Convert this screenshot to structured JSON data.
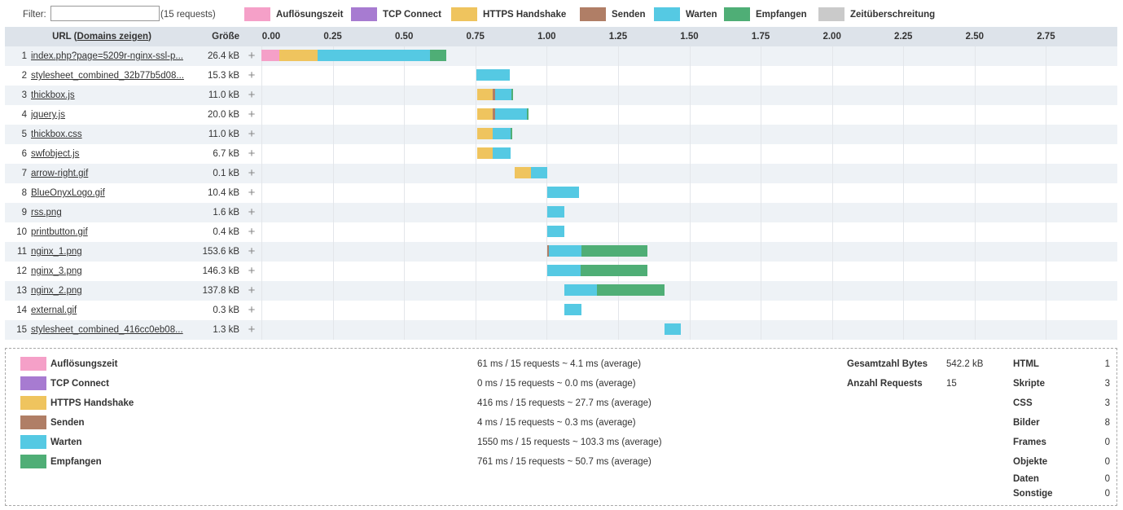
{
  "filter": {
    "label": "Filter:",
    "value": "",
    "count_text": "(15 requests)"
  },
  "legend": [
    {
      "label": "Auflösungszeit",
      "color": "#f5a0c8"
    },
    {
      "label": "TCP Connect",
      "color": "#a77bd1"
    },
    {
      "label": "HTTPS Handshake",
      "color": "#efc45e"
    },
    {
      "label": "Senden",
      "color": "#b07e66"
    },
    {
      "label": "Warten",
      "color": "#55c9e3"
    },
    {
      "label": "Empfangen",
      "color": "#4fae76"
    },
    {
      "label": "Zeitüberschreitung",
      "color": "#cacaca"
    }
  ],
  "table": {
    "url_header_prefix": "URL (",
    "url_header_link": "Domains zeigen",
    "url_header_suffix": ")",
    "size_header": "Größe",
    "axis": {
      "max": 3.0,
      "ticks": [
        "0.00",
        "0.25",
        "0.50",
        "0.75",
        "1.00",
        "1.25",
        "1.50",
        "1.75",
        "2.00",
        "2.25",
        "2.50",
        "2.75"
      ]
    },
    "rows": [
      {
        "idx": "1",
        "url": "index.php?page=5209r-nginx-ssl-p...",
        "size": "26.4 kB",
        "seg": [
          [
            "#f5a0c8",
            0.0,
            0.062
          ],
          [
            "#efc45e",
            0.062,
            0.198
          ],
          [
            "#55c9e3",
            0.198,
            0.59
          ],
          [
            "#4fae76",
            0.59,
            0.647
          ]
        ]
      },
      {
        "idx": "2",
        "url": "stylesheet_combined_32b77b5d08...",
        "size": "15.3 kB",
        "seg": [
          [
            "#55c9e3",
            0.753,
            0.87
          ]
        ]
      },
      {
        "idx": "3",
        "url": "thickbox.js",
        "size": "11.0 kB",
        "seg": [
          [
            "#efc45e",
            0.756,
            0.812
          ],
          [
            "#b07e66",
            0.812,
            0.818
          ],
          [
            "#55c9e3",
            0.818,
            0.876
          ],
          [
            "#4fae76",
            0.876,
            0.882
          ]
        ]
      },
      {
        "idx": "4",
        "url": "jquery.js",
        "size": "20.0 kB",
        "seg": [
          [
            "#efc45e",
            0.756,
            0.812
          ],
          [
            "#b07e66",
            0.812,
            0.818
          ],
          [
            "#55c9e3",
            0.818,
            0.93
          ],
          [
            "#4fae76",
            0.93,
            0.936
          ]
        ]
      },
      {
        "idx": "5",
        "url": "thickbox.css",
        "size": "11.0 kB",
        "seg": [
          [
            "#efc45e",
            0.756,
            0.812
          ],
          [
            "#55c9e3",
            0.812,
            0.874
          ],
          [
            "#4fae76",
            0.874,
            0.88
          ]
        ]
      },
      {
        "idx": "6",
        "url": "swfobject.js",
        "size": "6.7 kB",
        "seg": [
          [
            "#efc45e",
            0.756,
            0.812
          ],
          [
            "#55c9e3",
            0.812,
            0.873
          ]
        ]
      },
      {
        "idx": "7",
        "url": "arrow-right.gif",
        "size": "0.1 kB",
        "seg": [
          [
            "#efc45e",
            0.889,
            0.945
          ],
          [
            "#55c9e3",
            0.945,
            1.001
          ]
        ]
      },
      {
        "idx": "8",
        "url": "BlueOnyxLogo.gif",
        "size": "10.4 kB",
        "seg": [
          [
            "#55c9e3",
            1.001,
            1.113
          ]
        ]
      },
      {
        "idx": "9",
        "url": "rss.png",
        "size": "1.6 kB",
        "seg": [
          [
            "#55c9e3",
            1.001,
            1.061
          ]
        ]
      },
      {
        "idx": "10",
        "url": "printbutton.gif",
        "size": "0.4 kB",
        "seg": [
          [
            "#55c9e3",
            1.001,
            1.061
          ]
        ]
      },
      {
        "idx": "11",
        "url": "nginx_1.png",
        "size": "153.6 kB",
        "seg": [
          [
            "#b07e66",
            1.001,
            1.007
          ],
          [
            "#55c9e3",
            1.007,
            1.121
          ],
          [
            "#4fae76",
            1.121,
            1.353
          ]
        ]
      },
      {
        "idx": "12",
        "url": "nginx_3.png",
        "size": "146.3 kB",
        "seg": [
          [
            "#55c9e3",
            1.001,
            1.118
          ],
          [
            "#4fae76",
            1.118,
            1.353
          ]
        ]
      },
      {
        "idx": "13",
        "url": "nginx_2.png",
        "size": "137.8 kB",
        "seg": [
          [
            "#55c9e3",
            1.061,
            1.177
          ],
          [
            "#4fae76",
            1.177,
            1.413
          ]
        ]
      },
      {
        "idx": "14",
        "url": "external.gif",
        "size": "0.3 kB",
        "seg": [
          [
            "#55c9e3",
            1.061,
            1.121
          ]
        ]
      },
      {
        "idx": "15",
        "url": "stylesheet_combined_416cc0eb08...",
        "size": "1.3 kB",
        "seg": [
          [
            "#55c9e3",
            1.413,
            1.47
          ]
        ]
      }
    ]
  },
  "summary": {
    "timings": [
      {
        "label": "Auflösungszeit",
        "color": "#f5a0c8",
        "stat": "61 ms / 15 requests ~ 4.1 ms (average)"
      },
      {
        "label": "TCP Connect",
        "color": "#a77bd1",
        "stat": "0 ms / 15 requests ~ 0.0 ms (average)"
      },
      {
        "label": "HTTPS Handshake",
        "color": "#efc45e",
        "stat": "416 ms / 15 requests ~ 27.7 ms (average)"
      },
      {
        "label": "Senden",
        "color": "#b07e66",
        "stat": "4 ms / 15 requests ~ 0.3 ms (average)"
      },
      {
        "label": "Warten",
        "color": "#55c9e3",
        "stat": "1550 ms / 15 requests ~ 103.3 ms (average)"
      },
      {
        "label": "Empfangen",
        "color": "#4fae76",
        "stat": "761 ms / 15 requests ~ 50.7 ms (average)"
      }
    ],
    "totals": [
      {
        "label": "Gesamtzahl Bytes",
        "value": "542.2 kB"
      },
      {
        "label": "Anzahl Requests",
        "value": "15"
      }
    ],
    "kinds": [
      {
        "label": "HTML",
        "value": "1"
      },
      {
        "label": "Skripte",
        "value": "3"
      },
      {
        "label": "CSS",
        "value": "3"
      },
      {
        "label": "Bilder",
        "value": "8"
      },
      {
        "label": "Frames",
        "value": "0"
      },
      {
        "label": "Objekte",
        "value": "0"
      },
      {
        "label": "Daten",
        "value": "0"
      },
      {
        "label": "Sonstige",
        "value": "0"
      }
    ]
  }
}
